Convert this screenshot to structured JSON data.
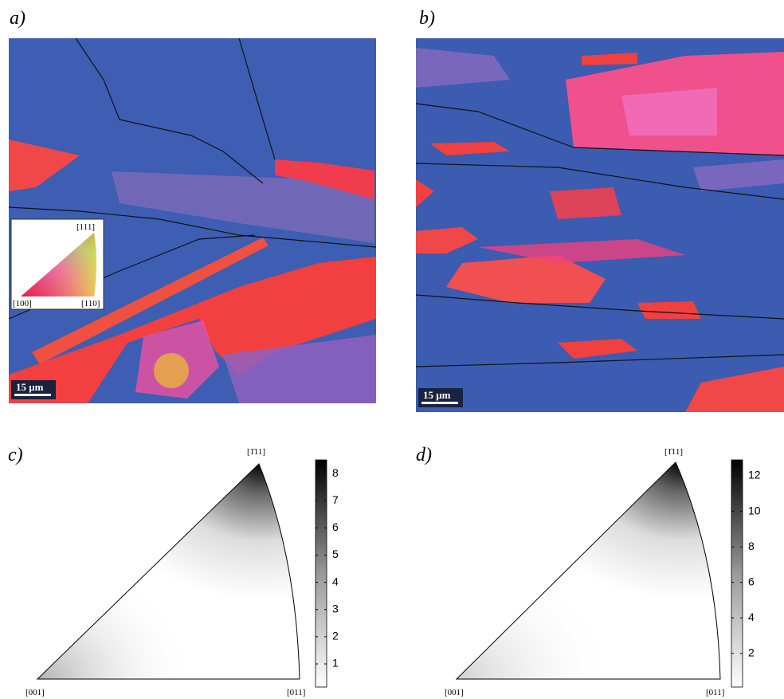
{
  "panels": [
    {
      "label": "a)",
      "scale_bar": "15 μm",
      "key": {
        "top": "[111]",
        "left": "[100]",
        "right": "[110]"
      }
    },
    {
      "label": "b)",
      "scale_bar": "15 μm"
    },
    {
      "label": "c)",
      "corners": {
        "top": "[1̄11]",
        "left": "[001]",
        "right": "[011]"
      },
      "colorbar": {
        "lim": [
          0.15,
          8.5
        ],
        "ticks": [
          1,
          2,
          3,
          4,
          5,
          6,
          7,
          8
        ]
      }
    },
    {
      "label": "d)",
      "corners": {
        "top": "[1̄11]",
        "left": "[001]",
        "right": "[011]"
      },
      "colorbar": {
        "lim": [
          0.1,
          12.9
        ],
        "ticks": [
          2,
          4,
          6,
          8,
          10,
          12
        ]
      }
    }
  ]
}
